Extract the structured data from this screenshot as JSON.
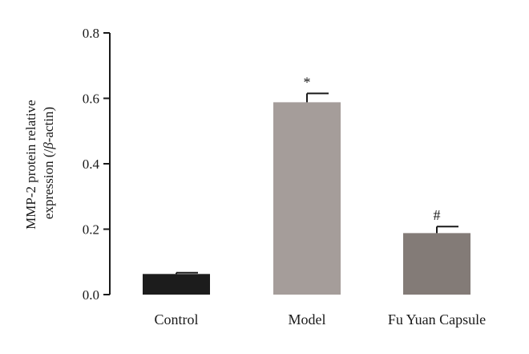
{
  "chart_data": {
    "type": "bar",
    "categories": [
      "Control",
      "Model",
      "Fu Yuan Capsule"
    ],
    "values": [
      0.063,
      0.588,
      0.188
    ],
    "errors": [
      0.004,
      0.027,
      0.02
    ],
    "annotations": [
      "",
      "*",
      "#"
    ],
    "colors": [
      "#1c1c1c",
      "#a59d9a",
      "#837b77"
    ],
    "ylabel_line1": "MMP-2 protein relative",
    "ylabel_line2_prefix": "expression (/",
    "ylabel_line2_greek": "β",
    "ylabel_line2_suffix": "-actin)",
    "ylim": [
      0,
      0.8
    ],
    "yticks": [
      0.0,
      0.2,
      0.4,
      0.6,
      0.8
    ],
    "ytick_labels": [
      "0.0",
      "0.2",
      "0.4",
      "0.6",
      "0.8"
    ],
    "grid": false
  }
}
